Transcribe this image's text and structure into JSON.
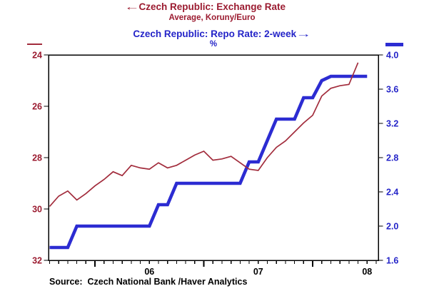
{
  "header": {
    "line1_arrow": "←",
    "line1_text": "Czech Republic: Exchange Rate",
    "line2_text": "Average, Koruny/Euro",
    "line3_text": "Czech Republic: Repo Rate: 2-week",
    "line3_arrow": "→",
    "line4_text": "%"
  },
  "footer": {
    "source": "Source:  Czech National Bank /Haver Analytics"
  },
  "colors": {
    "exchange_text": "#9B1B30",
    "exchange_line": "#A22C3C",
    "repo_text": "#2424C8",
    "repo_line": "#2C2CD2",
    "axis": "#000000"
  },
  "chart_data": {
    "type": "line",
    "frequency": "monthly",
    "x_axis": {
      "start_month": "2005-08",
      "month_slots": 37,
      "year_tick_month_indices": [
        5,
        17,
        29
      ],
      "year_labels": [
        {
          "text": "06",
          "month_index": 11
        },
        {
          "text": "07",
          "month_index": 23
        },
        {
          "text": "08",
          "month_index": 35
        }
      ]
    },
    "left_axis": {
      "title": "Czech Republic: Exchange Rate",
      "subtitle": "Average, Koruny/Euro",
      "top_value": 24,
      "bottom_value": 32,
      "ticks": [
        24,
        26,
        28,
        30,
        32
      ],
      "decimals": 0,
      "inverted": true
    },
    "right_axis": {
      "title": "Czech Republic: Repo Rate: 2-week",
      "subtitle": "%",
      "top_value": 4.0,
      "bottom_value": 1.6,
      "ticks": [
        4.0,
        3.6,
        3.2,
        2.8,
        2.4,
        2.0,
        1.6
      ],
      "decimals": 1,
      "inverted": false
    },
    "series": [
      {
        "name": "Czech Republic: Exchange Rate (Average, Koruny/Euro)",
        "axis": "left",
        "color": "#A22C3C",
        "width": 1.7,
        "start_month": "2005-08",
        "values": [
          29.9,
          29.5,
          29.3,
          29.65,
          29.4,
          29.1,
          28.85,
          28.55,
          28.7,
          28.3,
          28.4,
          28.45,
          28.2,
          28.4,
          28.3,
          28.1,
          27.9,
          27.75,
          28.1,
          28.05,
          27.95,
          28.2,
          28.45,
          28.5,
          28.0,
          27.6,
          27.35,
          27.0,
          26.65,
          26.35,
          25.6,
          25.3,
          25.2,
          25.15,
          24.3
        ]
      },
      {
        "name": "Czech Republic: Repo Rate: 2-week (%)",
        "axis": "right",
        "color": "#2C2CD2",
        "width": 4.6,
        "start_month": "2005-08",
        "values": [
          1.75,
          1.75,
          1.75,
          2.0,
          2.0,
          2.0,
          2.0,
          2.0,
          2.0,
          2.0,
          2.0,
          2.0,
          2.25,
          2.25,
          2.5,
          2.5,
          2.5,
          2.5,
          2.5,
          2.5,
          2.5,
          2.5,
          2.75,
          2.75,
          3.0,
          3.25,
          3.25,
          3.25,
          3.5,
          3.5,
          3.7,
          3.75,
          3.75,
          3.75,
          3.75,
          3.75
        ]
      }
    ]
  }
}
